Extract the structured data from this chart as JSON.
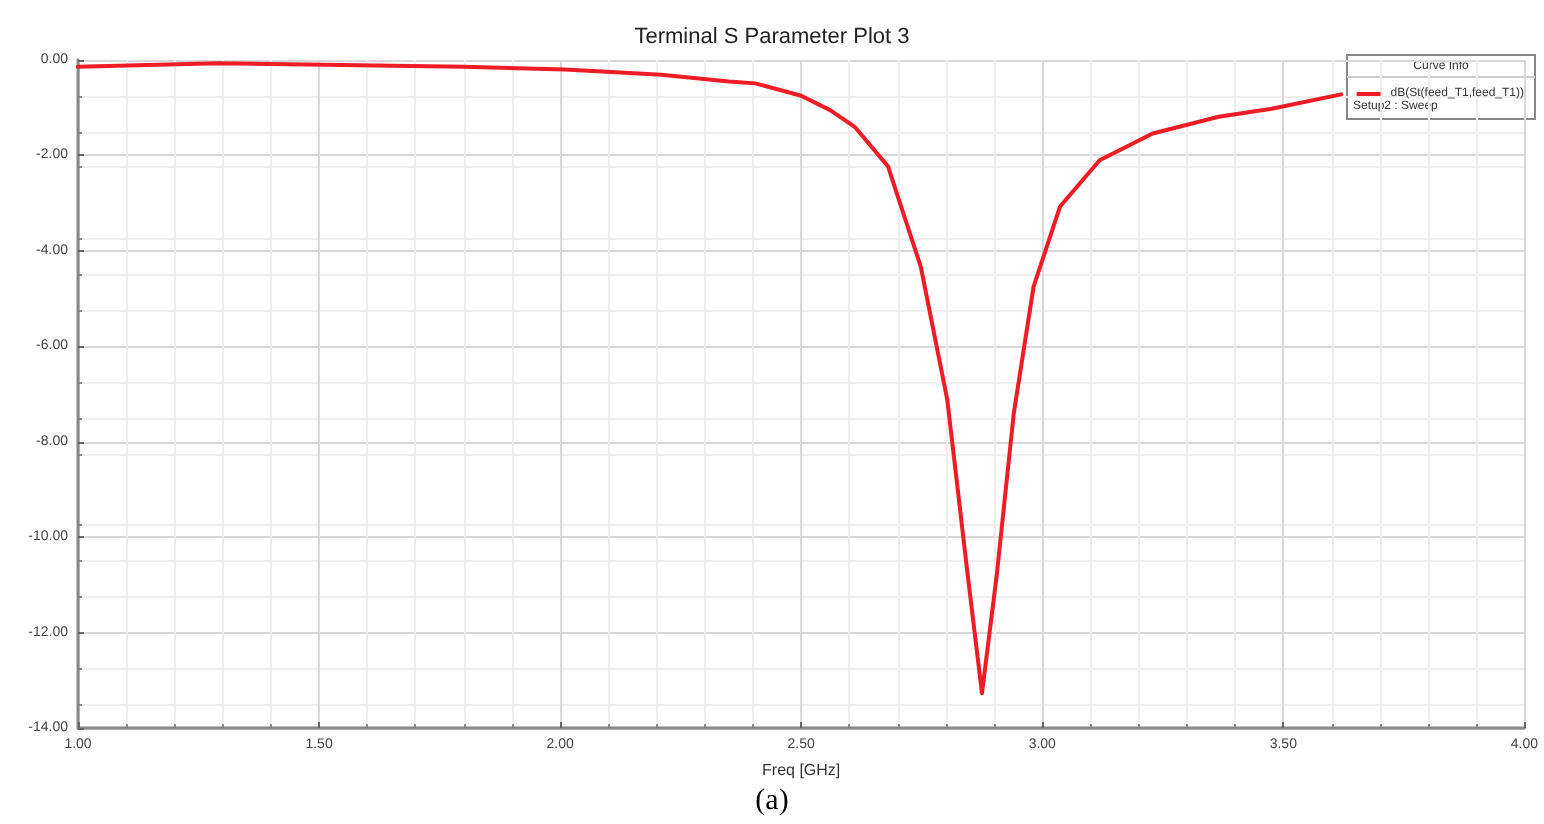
{
  "chart_data": {
    "type": "line",
    "title": "Terminal S Parameter Plot 3",
    "xlabel": "Freq [GHz]",
    "legend_title": "Curve Info",
    "annotations": [
      "Setup2 : Sweep",
      "(a)"
    ],
    "x": [
      1.0,
      1.29,
      1.8,
      2.01,
      2.21,
      2.35,
      2.405,
      2.5,
      2.56,
      2.611,
      2.68,
      2.748,
      2.803,
      2.845,
      2.875,
      2.906,
      2.941,
      2.982,
      3.037,
      3.119,
      3.229,
      3.366,
      3.476,
      3.62
    ],
    "series": [
      {
        "name": "dB(St(feed_T1,feed_T1))",
        "color": "#ee1c25",
        "values": [
          -0.14,
          -0.07,
          -0.14,
          -0.2,
          -0.31,
          -0.45,
          -0.49,
          -0.75,
          -1.05,
          -1.4,
          -2.23,
          -4.33,
          -7.12,
          -10.76,
          -13.27,
          -10.76,
          -7.4,
          -4.75,
          -3.07,
          -2.1,
          -1.54,
          -1.19,
          -1.02,
          -0.72
        ]
      }
    ],
    "xlim": [
      1.0,
      4.0
    ],
    "xticks": [
      {
        "value": 1.0,
        "label": "1.00"
      },
      {
        "value": 1.5,
        "label": "1.50"
      },
      {
        "value": 2.0,
        "label": "2.00"
      },
      {
        "value": 2.5,
        "label": "2.50"
      },
      {
        "value": 3.0,
        "label": "3.00"
      },
      {
        "value": 3.5,
        "label": "3.50"
      },
      {
        "value": 4.0,
        "label": "4.00"
      }
    ],
    "ylim": [
      -14,
      0
    ],
    "yticks": [
      {
        "value": -14,
        "label": "-14.00"
      },
      {
        "value": -12,
        "label": "-12.00"
      },
      {
        "value": -10,
        "label": "-10.00"
      },
      {
        "value": -8,
        "label": "-8.00"
      },
      {
        "value": -6,
        "label": "-6.00"
      },
      {
        "value": -4,
        "label": "-4.00"
      },
      {
        "value": -2,
        "label": "-2.00"
      },
      {
        "value": 0,
        "label": "0.00"
      }
    ],
    "grid": true,
    "legend": "top right",
    "marker": "none",
    "line_style": "solid"
  }
}
